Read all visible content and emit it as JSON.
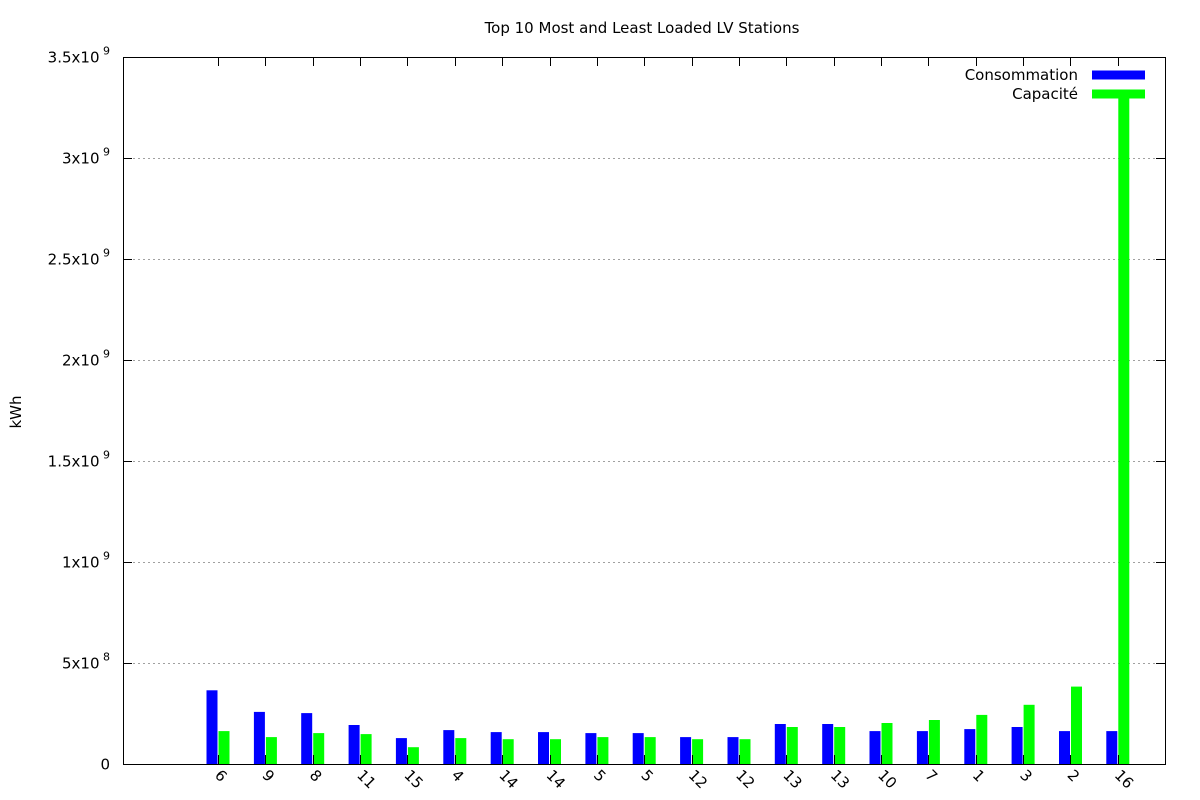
{
  "chart_data": {
    "type": "bar",
    "title": "Top 10 Most and Least Loaded LV Stations",
    "xlabel": "",
    "ylabel": "kWh",
    "ylim": [
      0,
      3500000000
    ],
    "grid": true,
    "legend_position": "top-right",
    "y_ticks": [
      {
        "value": 0,
        "mantissa": "0",
        "exp": ""
      },
      {
        "value": 500000000,
        "mantissa": "5x10",
        "exp": "8"
      },
      {
        "value": 1000000000,
        "mantissa": "1x10",
        "exp": "9"
      },
      {
        "value": 1500000000,
        "mantissa": "1.5x10",
        "exp": "9"
      },
      {
        "value": 2000000000,
        "mantissa": "2x10",
        "exp": "9"
      },
      {
        "value": 2500000000,
        "mantissa": "2.5x10",
        "exp": "9"
      },
      {
        "value": 3000000000,
        "mantissa": "3x10",
        "exp": "9"
      },
      {
        "value": 3500000000,
        "mantissa": "3.5x10",
        "exp": "9"
      }
    ],
    "categories": [
      "6",
      "9",
      "8",
      "11",
      "15",
      "4",
      "14",
      "14",
      "5",
      "5",
      "12",
      "12",
      "13",
      "13",
      "10",
      "7",
      "1",
      "3",
      "2",
      "16"
    ],
    "series": [
      {
        "name": "Consommation",
        "color": "#0000ff",
        "values": [
          365000000,
          258000000,
          252000000,
          193000000,
          128000000,
          168000000,
          158000000,
          158000000,
          153000000,
          153000000,
          133000000,
          133000000,
          198000000,
          198000000,
          163000000,
          163000000,
          173000000,
          183000000,
          163000000,
          163000000
        ]
      },
      {
        "name": "Capacité",
        "color": "#00ff00",
        "values": [
          163000000,
          133000000,
          153000000,
          148000000,
          83000000,
          128000000,
          123000000,
          123000000,
          133000000,
          133000000,
          123000000,
          123000000,
          183000000,
          183000000,
          203000000,
          218000000,
          243000000,
          293000000,
          383000000,
          3300000000
        ]
      }
    ]
  }
}
